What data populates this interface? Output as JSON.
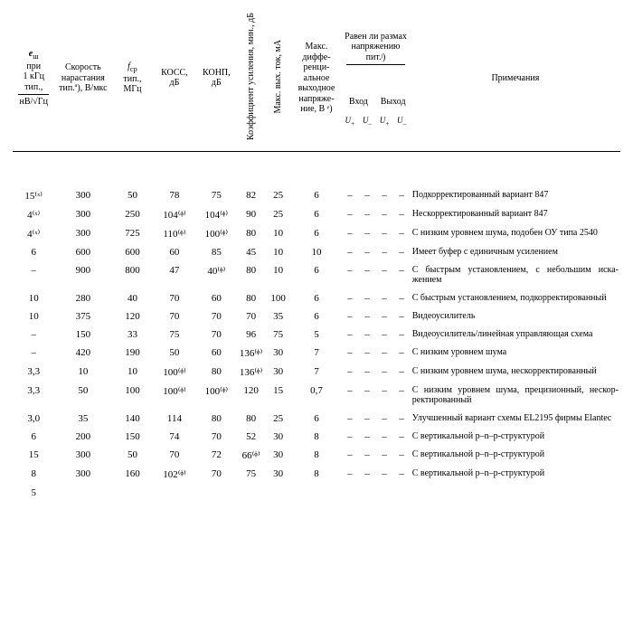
{
  "headers": {
    "e_noise": "eₙ при 1 кГц тип., нВ/√Гц",
    "slew": "Ско­рость нарас­тания тип.ª), В/мкс",
    "fcp": "f_cp тип., МГц",
    "kocc": "КОСС, дБ",
    "konp": "КОНП, дБ",
    "ku": "Коэффициент усиления, мин., дБ",
    "iout": "Макс. вых. ток, мА",
    "vdiff": "Макс. диффе­ренци­альное выходное на­пряже­ние, В ᵉ)",
    "rail_top": "Равен ли размах напря­жению пит.ʲ)",
    "rail_in": "Вход",
    "rail_out": "Выход",
    "u_plus": "U₊",
    "u_minus": "U₋",
    "notes": "Примечания"
  },
  "rows": [
    {
      "e": "15⁽ˣ⁾",
      "slew": "300",
      "fcp": "50",
      "kocc": "78",
      "konp": "75",
      "ku": "82",
      "iout": "25",
      "vdiff": "6",
      "ip": "–",
      "im": "–",
      "op": "–",
      "om": "–",
      "notes": "Подкорректированный вариант 847"
    },
    {
      "e": "4⁽ˣ⁾",
      "slew": "300",
      "fcp": "250",
      "kocc": "104⁽ᶲ⁾",
      "konp": "104⁽ᶲ⁾",
      "ku": "90",
      "iout": "25",
      "vdiff": "6",
      "ip": "–",
      "im": "–",
      "op": "–",
      "om": "–",
      "notes": "Нескорректированный ва­риант 847"
    },
    {
      "e": "4⁽ˣ⁾",
      "slew": "300",
      "fcp": "725",
      "kocc": "110⁽ᶲ⁾",
      "konp": "100⁽ᶲ⁾",
      "ku": "80",
      "iout": "10",
      "vdiff": "6",
      "ip": "–",
      "im": "–",
      "op": "–",
      "om": "–",
      "notes": "С низким уровнем шума, подобен ОУ типа 2540"
    },
    {
      "e": "6",
      "slew": "600",
      "fcp": "600",
      "kocc": "60",
      "konp": "85",
      "ku": "45",
      "iout": "10",
      "vdiff": "10",
      "ip": "–",
      "im": "–",
      "op": "–",
      "om": "–",
      "notes": "Имеет буфер с единичным усилением"
    },
    {
      "e": "–",
      "slew": "900",
      "fcp": "800",
      "kocc": "47",
      "konp": "40⁽ᶲ⁾",
      "ku": "80",
      "iout": "10",
      "vdiff": "6",
      "ip": "–",
      "im": "–",
      "op": "–",
      "om": "–",
      "notes": "С быстрым установлени­ем, с небольшим иска­жением"
    },
    {
      "e": "10",
      "slew": "280",
      "fcp": "40",
      "kocc": "70",
      "konp": "60",
      "ku": "80",
      "iout": "100",
      "vdiff": "6",
      "ip": "–",
      "im": "–",
      "op": "–",
      "om": "–",
      "notes": "С быстрым установлени­ем, подкорректирован­ный"
    },
    {
      "e": "10",
      "slew": "375",
      "fcp": "120",
      "kocc": "70",
      "konp": "70",
      "ku": "70",
      "iout": "35",
      "vdiff": "6",
      "ip": "–",
      "im": "–",
      "op": "–",
      "om": "–",
      "notes": "Видеоусилитель"
    },
    {
      "e": "–",
      "slew": "150",
      "fcp": "33",
      "kocc": "75",
      "konp": "70",
      "ku": "96",
      "iout": "75",
      "vdiff": "5",
      "ip": "–",
      "im": "–",
      "op": "–",
      "om": "–",
      "notes": "Видеоусилитель/линейная управляющая схема"
    },
    {
      "e": "–",
      "slew": "420",
      "fcp": "190",
      "kocc": "50",
      "konp": "60",
      "ku": "136⁽ᶲ⁾",
      "iout": "30",
      "vdiff": "7",
      "ip": "–",
      "im": "–",
      "op": "–",
      "om": "–",
      "notes": "С низким уровнем шума"
    },
    {
      "e": "3,3",
      "slew": "10",
      "fcp": "10",
      "kocc": "100⁽ᶲ⁾",
      "konp": "80",
      "ku": "136⁽ᶲ⁾",
      "iout": "30",
      "vdiff": "7",
      "ip": "–",
      "im": "–",
      "op": "–",
      "om": "–",
      "notes": "С низким уровнем шума, нескорректированный"
    },
    {
      "e": "3,3",
      "slew": "50",
      "fcp": "100",
      "kocc": "100⁽ᶲ⁾",
      "konp": "100⁽ᶲ⁾",
      "ku": "120",
      "iout": "15",
      "vdiff": "0,7",
      "ip": "–",
      "im": "–",
      "op": "–",
      "om": "–",
      "notes": "С низким уровнем шума, прецизионный, нескор­ректированный"
    },
    {
      "e": "3,0",
      "slew": "35",
      "fcp": "140",
      "kocc": "114",
      "konp": "80",
      "ku": "80",
      "iout": "25",
      "vdiff": "6",
      "ip": "–",
      "im": "–",
      "op": "–",
      "om": "–",
      "notes": "Улучшенный вариант схе­мы EL2195 фирмы Elantec"
    },
    {
      "e": "6",
      "slew": "200",
      "fcp": "150",
      "kocc": "74",
      "konp": "70",
      "ku": "52",
      "iout": "30",
      "vdiff": "8",
      "ip": "–",
      "im": "–",
      "op": "–",
      "om": "–",
      "notes": "С вертикальной p–n–p-структурой"
    },
    {
      "e": "15",
      "slew": "300",
      "fcp": "50",
      "kocc": "70",
      "konp": "72",
      "ku": "66⁽ᶲ⁾",
      "iout": "30",
      "vdiff": "8",
      "ip": "–",
      "im": "–",
      "op": "–",
      "om": "–",
      "notes": "С вертикальной p–n–p-структурой"
    },
    {
      "e": "8",
      "slew": "300",
      "fcp": "160",
      "kocc": "102⁽ᶲ⁾",
      "konp": "70",
      "ku": "75",
      "iout": "30",
      "vdiff": "8",
      "ip": "–",
      "im": "–",
      "op": "–",
      "om": "–",
      "notes": "С вертикальной p–n–p-структурой"
    },
    {
      "e": "5",
      "slew": "",
      "fcp": "",
      "kocc": "",
      "konp": "",
      "ku": "",
      "iout": "",
      "vdiff": "",
      "ip": "",
      "im": "",
      "op": "",
      "om": "",
      "notes": ""
    }
  ]
}
